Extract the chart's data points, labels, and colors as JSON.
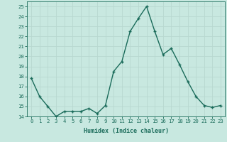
{
  "x": [
    0,
    1,
    2,
    3,
    4,
    5,
    6,
    7,
    8,
    9,
    10,
    11,
    12,
    13,
    14,
    15,
    16,
    17,
    18,
    19,
    20,
    21,
    22,
    23
  ],
  "y": [
    17.8,
    16.0,
    15.0,
    14.0,
    14.5,
    14.5,
    14.5,
    14.8,
    14.3,
    15.1,
    18.5,
    19.5,
    22.5,
    23.8,
    25.0,
    22.5,
    20.2,
    20.8,
    19.2,
    17.5,
    16.0,
    15.1,
    14.9,
    15.1
  ],
  "line_color": "#1a6b5a",
  "marker": "+",
  "marker_size": 3.5,
  "bg_color": "#c8e8e0",
  "grid_color": "#b8d8d0",
  "xlabel": "Humidex (Indice chaleur)",
  "ylim": [
    14,
    25.5
  ],
  "xlim": [
    -0.5,
    23.5
  ],
  "yticks": [
    14,
    15,
    16,
    17,
    18,
    19,
    20,
    21,
    22,
    23,
    24,
    25
  ],
  "xticks": [
    0,
    1,
    2,
    3,
    4,
    5,
    6,
    7,
    8,
    9,
    10,
    11,
    12,
    13,
    14,
    15,
    16,
    17,
    18,
    19,
    20,
    21,
    22,
    23
  ],
  "xtick_labels": [
    "0",
    "1",
    "2",
    "3",
    "4",
    "5",
    "6",
    "7",
    "8",
    "9",
    "10",
    "11",
    "12",
    "13",
    "14",
    "15",
    "16",
    "17",
    "18",
    "19",
    "20",
    "21",
    "22",
    "23"
  ],
  "linewidth": 1.0,
  "font_family": "monospace",
  "tick_fontsize": 5.2,
  "xlabel_fontsize": 6.0
}
